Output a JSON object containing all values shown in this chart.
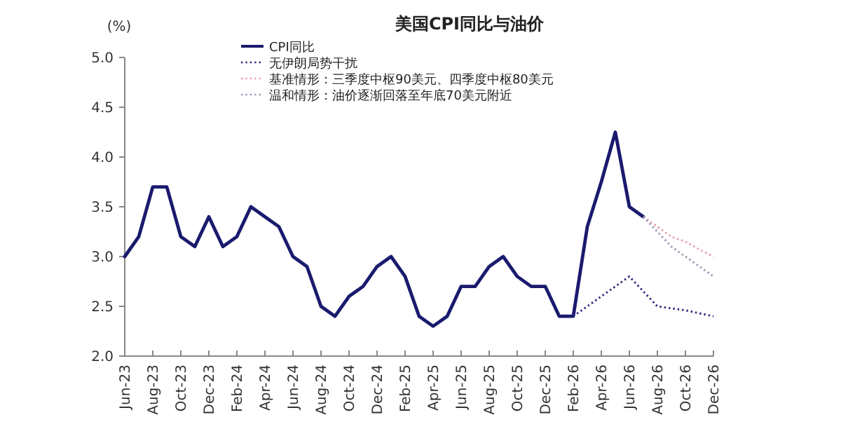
{
  "chart_data": {
    "type": "line",
    "title": "美国CPI同比与油价",
    "ylabel": "(%)",
    "legend": "top left",
    "line_style": "solid",
    "xlim": [
      "2023-06",
      "2026-12"
    ],
    "xticks": [
      {
        "value": "2023-06",
        "label": "Jun-23"
      },
      {
        "value": "2023-08",
        "label": "Aug-23"
      },
      {
        "value": "2023-10",
        "label": "Oct-23"
      },
      {
        "value": "2023-12",
        "label": "Dec-23"
      },
      {
        "value": "2024-02",
        "label": "Feb-24"
      },
      {
        "value": "2024-04",
        "label": "Apr-24"
      },
      {
        "value": "2024-06",
        "label": "Jun-24"
      },
      {
        "value": "2024-08",
        "label": "Aug-24"
      },
      {
        "value": "2024-10",
        "label": "Oct-24"
      },
      {
        "value": "2024-12",
        "label": "Dec-24"
      },
      {
        "value": "2025-02",
        "label": "Feb-25"
      },
      {
        "value": "2025-04",
        "label": "Apr-25"
      },
      {
        "value": "2025-06",
        "label": "Jun-25"
      },
      {
        "value": "2025-08",
        "label": "Aug-25"
      },
      {
        "value": "2025-10",
        "label": "Oct-25"
      },
      {
        "value": "2025-12",
        "label": "Dec-25"
      },
      {
        "value": "2026-02",
        "label": "Feb-26"
      },
      {
        "value": "2026-04",
        "label": "Apr-26"
      },
      {
        "value": "2026-06",
        "label": "Jun-26"
      },
      {
        "value": "2026-08",
        "label": "Aug-26"
      },
      {
        "value": "2026-10",
        "label": "Oct-26"
      },
      {
        "value": "2026-12",
        "label": "Dec-26"
      }
    ],
    "ylim": [
      2,
      5
    ],
    "yticks": [
      {
        "value": 2,
        "label": "2.0"
      },
      {
        "value": 2.5,
        "label": "2.5"
      },
      {
        "value": 3,
        "label": "3.0"
      },
      {
        "value": 3.5,
        "label": "3.5"
      },
      {
        "value": 4,
        "label": "4.0"
      },
      {
        "value": 4.5,
        "label": "4.5"
      },
      {
        "value": 5,
        "label": "5.0"
      }
    ],
    "series": [
      {
        "name": "CPI同比",
        "color": "#1a1a6e",
        "x": [
          "2023-06",
          "2023-07",
          "2023-08",
          "2023-09",
          "2023-10",
          "2023-11",
          "2023-12",
          "2024-01",
          "2024-02",
          "2024-03",
          "2024-04",
          "2024-05",
          "2024-06",
          "2024-07",
          "2024-08",
          "2024-09",
          "2024-10",
          "2024-11",
          "2024-12",
          "2025-01",
          "2025-02",
          "2025-03",
          "2025-04",
          "2025-05",
          "2025-06",
          "2025-07",
          "2025-08",
          "2025-09",
          "2025-10",
          "2025-11",
          "2025-12",
          "2026-01",
          "2026-02",
          "2026-03",
          "2026-04",
          "2026-05",
          "2026-06",
          "2026-07"
        ],
        "values": [
          3.0,
          3.2,
          3.7,
          3.7,
          3.2,
          3.1,
          3.4,
          3.1,
          3.2,
          3.5,
          3.4,
          3.3,
          3.0,
          2.9,
          2.5,
          2.4,
          2.6,
          2.7,
          2.9,
          3.0,
          2.8,
          2.4,
          2.3,
          2.4,
          2.7,
          2.7,
          2.9,
          3.0,
          2.8,
          2.7,
          2.7,
          2.4,
          2.4,
          3.3,
          3.75,
          4.25,
          3.5,
          3.4
        ]
      },
      {
        "name": "无伊朗局势干扰",
        "color": "#2a2a80",
        "line_style": "dotted",
        "x": [
          "2026-02",
          "2026-03",
          "2026-04",
          "2026-05",
          "2026-06",
          "2026-07",
          "2026-08",
          "2026-09",
          "2026-10",
          "2026-11",
          "2026-12"
        ],
        "values": [
          2.4,
          2.5,
          2.6,
          2.7,
          2.8,
          2.65,
          2.5,
          2.48,
          2.46,
          2.43,
          2.4
        ]
      },
      {
        "name": "基准情形：三季度中枢90美元、四季度中枢80美元",
        "color": "#e8a0a8",
        "line_style": "dotted",
        "x": [
          "2026-07",
          "2026-08",
          "2026-09",
          "2026-10",
          "2026-11",
          "2026-12"
        ],
        "values": [
          3.4,
          3.3,
          3.2,
          3.15,
          3.07,
          3.0
        ]
      },
      {
        "name": "温和情形：油价逐渐回落至年底70美元附近",
        "color": "#9a9ab8",
        "line_style": "dotted",
        "x": [
          "2026-07",
          "2026-08",
          "2026-09",
          "2026-10",
          "2026-11",
          "2026-12"
        ],
        "values": [
          3.4,
          3.25,
          3.1,
          3.0,
          2.9,
          2.8
        ]
      }
    ]
  }
}
